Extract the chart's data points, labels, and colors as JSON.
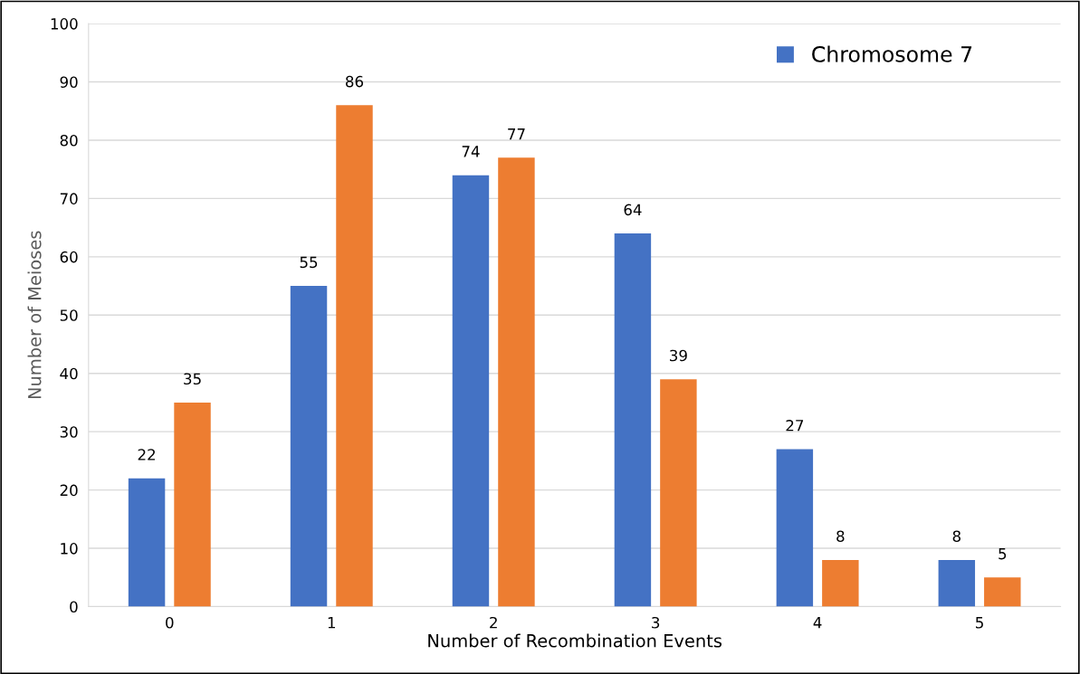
{
  "chart_data": {
    "type": "bar",
    "xlabel": "Number of Recombination Events",
    "ylabel": "Number of Meioses",
    "categories": [
      "0",
      "1",
      "2",
      "3",
      "4",
      "5"
    ],
    "series": [
      {
        "name": "Chromosome 7",
        "color": "#4472c4",
        "values": [
          22,
          55,
          74,
          64,
          27,
          8
        ]
      },
      {
        "color": "#ed7d31",
        "values": [
          35,
          86,
          77,
          39,
          8,
          5
        ]
      }
    ],
    "ylim": [
      0,
      100
    ],
    "yticks": [
      0,
      10,
      20,
      30,
      40,
      50,
      60,
      70,
      80,
      90,
      100
    ],
    "grid": "y",
    "legend": "top right",
    "data_labels": true
  }
}
